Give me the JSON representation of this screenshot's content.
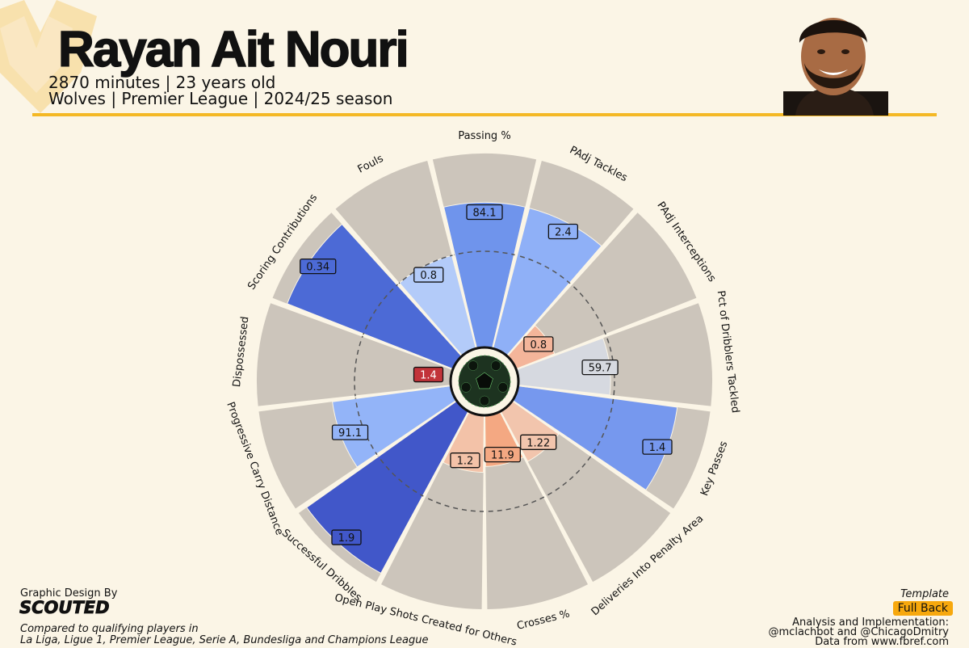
{
  "header": {
    "player_name": "Rayan Ait Nouri",
    "subline1": "2870 minutes | 23 years old",
    "subline2": "Wolves | Premier League | 2024/25 season",
    "crest_icon": "wolf-head-crest-icon",
    "portrait_icon": "player-portrait-icon",
    "accent_color": "#f4b825"
  },
  "chart_data": {
    "type": "pie-radar",
    "title": "Rayan Ait Nouri",
    "center_icon": "soccer-ball-icon",
    "slice_background": "#ccc5bb",
    "reference_ring": "dashed circle at 50th percentile",
    "categories": [
      "Passing %",
      "PAdj Tackles",
      "PAdj Interceptions",
      "Pct of Dribblers Tackled",
      "Key Passes",
      "Deliveries Into Penalty Area",
      "Crosses %",
      "Open Play Shots Created for Others",
      "Successful Dribbles",
      "Progressive Carry Distance",
      "Dispossessed",
      "Scoring Contributions",
      "Fouls"
    ],
    "values": [
      "84.1",
      "2.4",
      "0.8",
      "59.7",
      "1.4",
      "1.22",
      "11.9",
      "1.2",
      "1.9",
      "91.1",
      "1.4",
      "0.34",
      "0.8"
    ],
    "percentiles": [
      75,
      75,
      22,
      48,
      83,
      30,
      27,
      30,
      95,
      62,
      0,
      92,
      50
    ],
    "colors": [
      "#6f94ec",
      "#8fb0f7",
      "#f4b59a",
      "#d6d9e0",
      "#7698ee",
      "#f2c5ad",
      "#f4a882",
      "#f3c2a8",
      "#4157c9",
      "#93b4f8",
      "#c23339",
      "#4c6ad6",
      "#b3cbf9"
    ]
  },
  "footer": {
    "design_label": "Graphic Design By",
    "design_logo": "SCOUTED",
    "compare_line1": "Compared to qualifying players in",
    "compare_line2": "La Liga, Ligue 1, Premier League, Serie A, Bundesliga and Champions League",
    "template_label": "Template",
    "template_value": "Full Back",
    "credit_line1": "Analysis and Implementation:",
    "credit_line2": "@mclachbot and @ChicagoDmitry",
    "credit_line3": "Data from www.fbref.com"
  }
}
